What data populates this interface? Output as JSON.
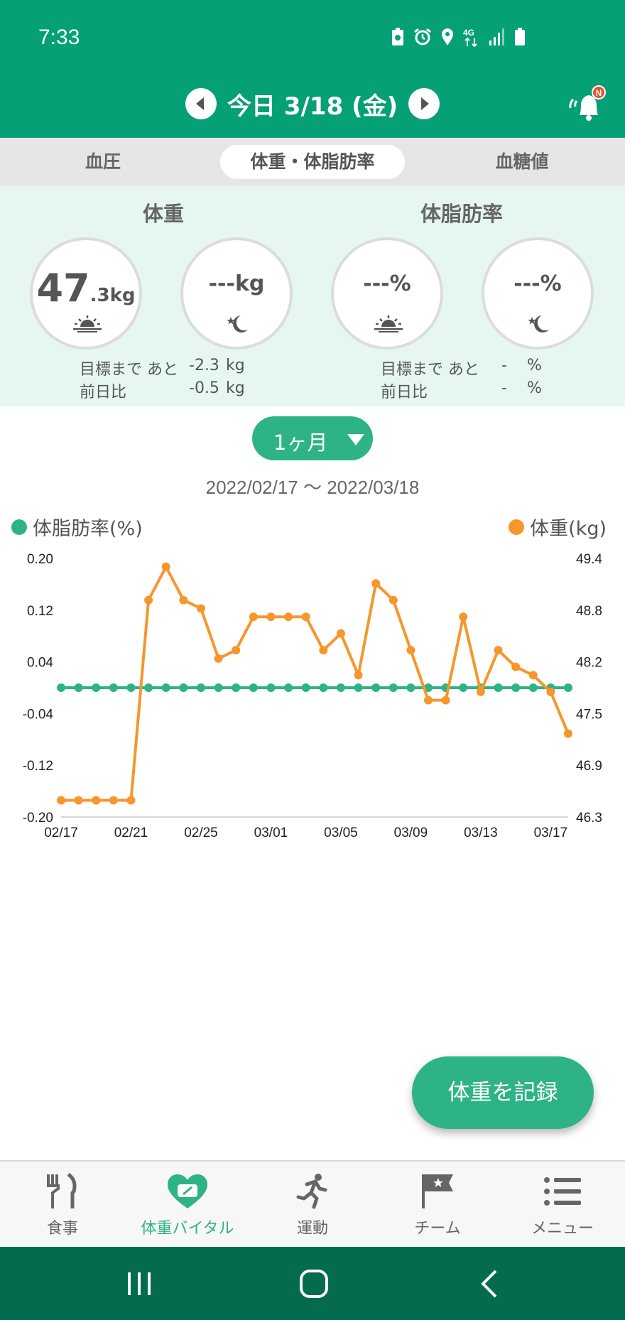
{
  "status_bar": {
    "time": "7:33"
  },
  "header": {
    "date": "今日 3/18 (金)",
    "notification_badge": "N"
  },
  "tabs": [
    {
      "label": "血圧",
      "selected": false
    },
    {
      "label": "体重・体脂肪率",
      "selected": true
    },
    {
      "label": "血糖値",
      "selected": false
    }
  ],
  "summary": {
    "weight_title": "体重",
    "fat_title": "体脂肪率",
    "morning_weight_int": "47",
    "morning_weight_dec": ".3",
    "morning_weight_unit": "kg",
    "evening_weight": "---kg",
    "morning_fat": "---%",
    "evening_fat": "---%",
    "goal_label": "目標まで あと",
    "prev_label": "前日比",
    "weight_goal_value": "-2.3",
    "weight_goal_unit": "kg",
    "weight_prev_value": "-0.5",
    "weight_prev_unit": "kg",
    "fat_goal_value": "-",
    "fat_goal_unit": "%",
    "fat_prev_value": "-",
    "fat_prev_unit": "%"
  },
  "range_selector": {
    "label": "1ヶ月"
  },
  "date_range": "2022/02/17 〜 2022/03/18",
  "legend": {
    "left": "体脂肪率(%)",
    "right": "体重(kg)"
  },
  "colors": {
    "primary": "#05a076",
    "accent": "#2eb386",
    "weight_line": "#f7962c",
    "fat_line": "#2eb386",
    "nav_bar": "#056b4e"
  },
  "chart_data": {
    "type": "line",
    "x": [
      "02/17",
      "02/18",
      "02/19",
      "02/20",
      "02/21",
      "02/22",
      "02/23",
      "02/24",
      "02/25",
      "02/26",
      "02/27",
      "02/28",
      "03/01",
      "03/02",
      "03/03",
      "03/04",
      "03/05",
      "03/06",
      "03/07",
      "03/08",
      "03/09",
      "03/10",
      "03/11",
      "03/12",
      "03/13",
      "03/14",
      "03/15",
      "03/16",
      "03/17",
      "03/18"
    ],
    "x_tick_labels": [
      "02/17",
      "02/21",
      "02/25",
      "03/01",
      "03/05",
      "03/09",
      "03/13",
      "03/17"
    ],
    "series": [
      {
        "name": "体脂肪率(%)",
        "axis": "left",
        "values": [
          0,
          0,
          0,
          0,
          0,
          0,
          0,
          0,
          0,
          0,
          0,
          0,
          0,
          0,
          0,
          0,
          0,
          0,
          0,
          0,
          0,
          0,
          0,
          0,
          0,
          0,
          0,
          0,
          0,
          0
        ]
      },
      {
        "name": "体重(kg)",
        "axis": "right",
        "values": [
          46.5,
          46.5,
          46.5,
          46.5,
          46.5,
          48.9,
          49.3,
          48.9,
          48.8,
          48.2,
          48.3,
          48.7,
          48.7,
          48.7,
          48.7,
          48.3,
          48.5,
          48.0,
          49.1,
          48.9,
          48.3,
          47.7,
          47.7,
          48.7,
          47.8,
          48.3,
          48.1,
          48.0,
          47.8,
          47.3
        ]
      }
    ],
    "y_left_ticks": [
      "0.20",
      "0.12",
      "0.04",
      "-0.04",
      "-0.12",
      "-0.20"
    ],
    "y_right_ticks": [
      "49.4",
      "48.8",
      "48.2",
      "47.5",
      "46.9",
      "46.3"
    ],
    "ylim_left": [
      -0.2,
      0.2
    ],
    "ylim_right": [
      46.3,
      49.4
    ]
  },
  "fab_label": "体重を記録",
  "bottom_nav": [
    {
      "label": "食事",
      "icon": "fork-knife-icon"
    },
    {
      "label": "体重バイタル",
      "icon": "heart-scale-icon"
    },
    {
      "label": "運動",
      "icon": "runner-icon"
    },
    {
      "label": "チーム",
      "icon": "flag-icon"
    },
    {
      "label": "メニュー",
      "icon": "menu-list-icon"
    }
  ]
}
